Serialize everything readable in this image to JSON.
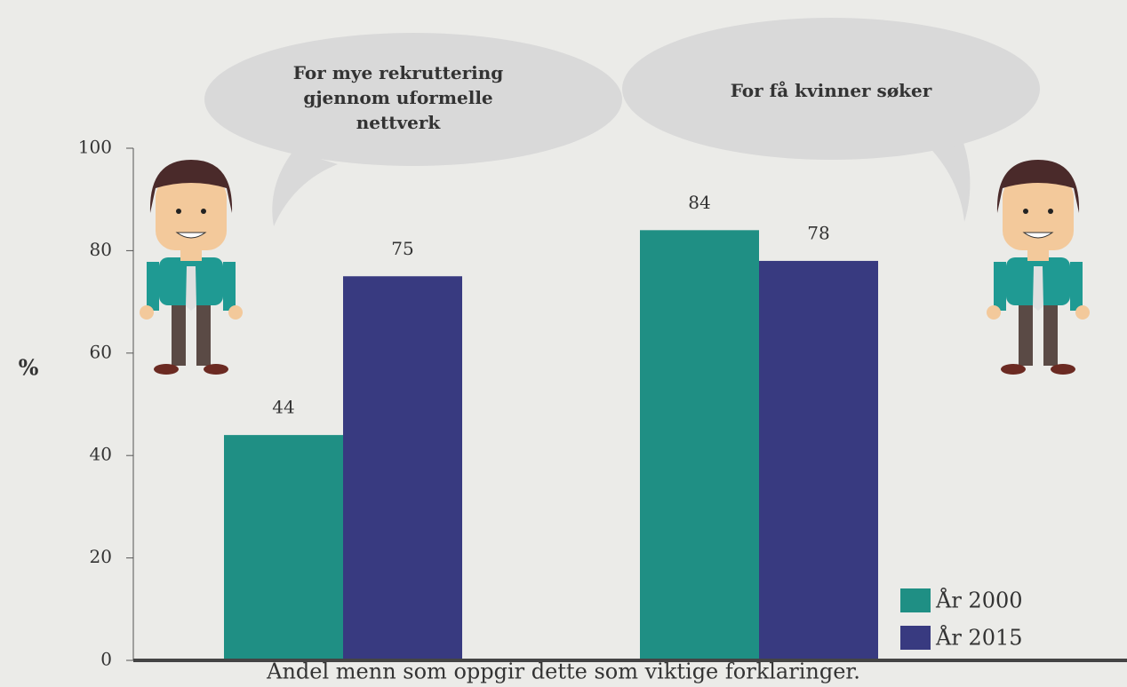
{
  "chart_data": {
    "type": "bar",
    "categories": [
      "For mye rekruttering gjennom uformelle nettverk",
      "For få kvinner søker"
    ],
    "series": [
      {
        "name": "År 2000",
        "color": "#1f8f84",
        "values": [
          44,
          84
        ]
      },
      {
        "name": "År 2015",
        "color": "#383a80",
        "values": [
          75,
          78
        ]
      }
    ],
    "ylabel": "%",
    "xlabel": "Andel menn som oppgir dette som viktige forklaringer.",
    "ylim": [
      0,
      100
    ],
    "yticks": [
      0,
      20,
      40,
      60,
      80,
      100
    ],
    "legend": "lower-right"
  }
}
